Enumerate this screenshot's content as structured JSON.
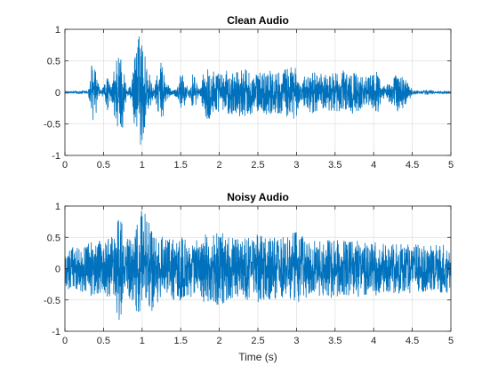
{
  "chart_data": [
    {
      "type": "line",
      "title": "Clean Audio",
      "xlabel": "",
      "ylabel": "",
      "xlim": [
        0,
        5
      ],
      "ylim": [
        -1,
        1
      ],
      "xticks": [
        "0",
        "0.5",
        "1",
        "1.5",
        "2",
        "2.5",
        "3",
        "3.5",
        "4",
        "4.5",
        "5"
      ],
      "yticks": [
        "-1",
        "-0.5",
        "0",
        "0.5",
        "1"
      ],
      "grid": true,
      "color": "#0072BD",
      "x": [
        0,
        0.1,
        0.2,
        0.3,
        0.35,
        0.4,
        0.45,
        0.5,
        0.55,
        0.6,
        0.65,
        0.7,
        0.75,
        0.8,
        0.85,
        0.9,
        0.95,
        1.0,
        1.05,
        1.1,
        1.15,
        1.2,
        1.25,
        1.3,
        1.35,
        1.4,
        1.45,
        1.5,
        1.55,
        1.6,
        1.65,
        1.7,
        1.75,
        1.8,
        1.85,
        1.9,
        2.0,
        2.1,
        2.2,
        2.3,
        2.4,
        2.5,
        2.6,
        2.7,
        2.8,
        2.9,
        2.95,
        3.0,
        3.05,
        3.1,
        3.2,
        3.3,
        3.4,
        3.5,
        3.6,
        3.7,
        3.8,
        3.9,
        4.0,
        4.05,
        4.1,
        4.2,
        4.3,
        4.4,
        4.5,
        4.6,
        4.7,
        4.8,
        4.9,
        5.0
      ],
      "envelope": [
        0.02,
        0.02,
        0.03,
        0.03,
        0.5,
        0.35,
        0.05,
        0.08,
        0.3,
        0.08,
        0.55,
        0.72,
        0.55,
        0.05,
        0.1,
        0.55,
        0.95,
        0.8,
        0.55,
        0.3,
        0.05,
        0.3,
        0.5,
        0.3,
        0.08,
        0.03,
        0.1,
        0.3,
        0.25,
        0.03,
        0.3,
        0.2,
        0.03,
        0.35,
        0.45,
        0.4,
        0.3,
        0.35,
        0.35,
        0.4,
        0.35,
        0.3,
        0.35,
        0.35,
        0.35,
        0.4,
        0.55,
        0.4,
        0.1,
        0.25,
        0.35,
        0.3,
        0.3,
        0.3,
        0.35,
        0.35,
        0.3,
        0.25,
        0.3,
        0.35,
        0.1,
        0.15,
        0.3,
        0.25,
        0.05,
        0.02,
        0.05,
        0.02,
        0.02,
        0.02
      ]
    },
    {
      "type": "line",
      "title": "Noisy Audio",
      "xlabel": "Time (s)",
      "ylabel": "",
      "xlim": [
        0,
        5
      ],
      "ylim": [
        -1,
        1
      ],
      "xticks": [
        "0",
        "0.5",
        "1",
        "1.5",
        "2",
        "2.5",
        "3",
        "3.5",
        "4",
        "4.5",
        "5"
      ],
      "yticks": [
        "-1",
        "-0.5",
        "0",
        "0.5",
        "1"
      ],
      "grid": true,
      "color": "#0072BD",
      "x": [
        0,
        0.1,
        0.2,
        0.3,
        0.35,
        0.4,
        0.5,
        0.6,
        0.65,
        0.7,
        0.75,
        0.8,
        0.9,
        0.95,
        1.0,
        1.05,
        1.1,
        1.2,
        1.3,
        1.5,
        1.7,
        1.8,
        1.9,
        2.0,
        2.2,
        2.4,
        2.5,
        2.6,
        2.8,
        2.9,
        3.0,
        3.1,
        3.2,
        3.4,
        3.5,
        3.6,
        3.8,
        4.0,
        4.1,
        4.2,
        4.4,
        4.5,
        4.6,
        4.8,
        5.0
      ],
      "envelope": [
        0.35,
        0.35,
        0.4,
        0.45,
        0.55,
        0.45,
        0.45,
        0.5,
        0.6,
        0.85,
        0.7,
        0.5,
        0.55,
        0.8,
        1.0,
        0.85,
        0.75,
        0.55,
        0.5,
        0.5,
        0.45,
        0.55,
        0.55,
        0.6,
        0.5,
        0.5,
        0.55,
        0.5,
        0.5,
        0.55,
        0.6,
        0.5,
        0.45,
        0.45,
        0.5,
        0.45,
        0.45,
        0.45,
        0.4,
        0.4,
        0.4,
        0.4,
        0.38,
        0.38,
        0.4
      ]
    }
  ]
}
